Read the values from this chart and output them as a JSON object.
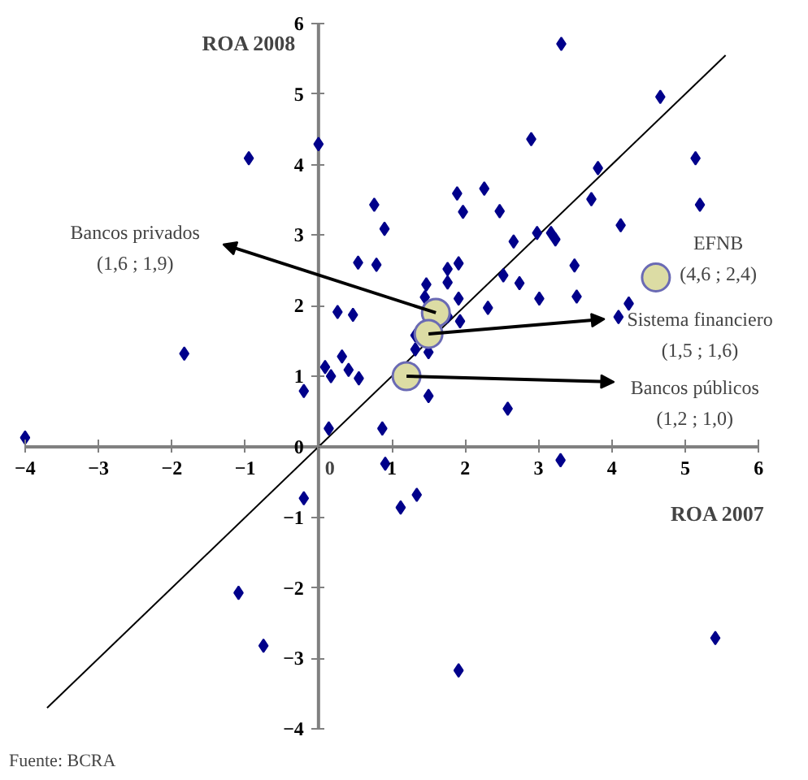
{
  "chart_data": {
    "type": "scatter",
    "xlabel": "ROA 2007",
    "ylabel": "ROA 2008",
    "xlim": [
      -4,
      6
    ],
    "ylim": [
      -4,
      6
    ],
    "xticks": [
      -4,
      -3,
      -2,
      -1,
      0,
      1,
      2,
      3,
      4,
      5,
      6
    ],
    "yticks": [
      -4,
      -3,
      -2,
      -1,
      0,
      1,
      2,
      3,
      4,
      5,
      6
    ],
    "grid": false,
    "series": [
      {
        "type": "line",
        "color": "#000000",
        "marker": "none",
        "line_style": "solid",
        "x": [
          -3.7,
          5.55
        ],
        "values": [
          -3.7,
          5.55
        ]
      },
      {
        "color": "#00008b",
        "marker": "diamond",
        "x": [
          -4.0,
          -1.83,
          -0.95,
          0.0,
          -0.2,
          -0.2,
          -1.09,
          -0.75,
          0.76,
          0.9,
          0.54,
          0.79,
          0.26,
          0.47,
          1.47,
          1.45,
          1.76,
          1.76,
          1.91,
          1.91,
          1.89,
          1.97,
          2.26,
          2.47,
          2.66,
          2.52,
          2.74,
          2.9,
          2.98,
          3.01,
          2.31,
          1.93,
          3.31,
          4.66,
          5.14,
          3.81,
          3.72,
          5.2,
          4.12,
          3.17,
          3.23,
          3.49,
          3.52,
          4.23,
          4.09,
          2.58,
          3.3,
          1.76,
          1.32,
          1.32,
          1.5,
          0.09,
          0.17,
          0.32,
          0.41,
          0.55,
          1.5,
          0.14,
          0.87,
          0.91,
          1.12,
          1.34,
          1.91,
          5.41
        ],
        "values": [
          0.13,
          1.32,
          4.09,
          4.29,
          0.79,
          -0.73,
          -2.07,
          -2.82,
          3.43,
          3.09,
          2.61,
          2.58,
          1.91,
          1.87,
          2.3,
          2.12,
          2.52,
          2.33,
          2.6,
          2.1,
          3.59,
          3.33,
          3.66,
          3.34,
          2.91,
          2.43,
          2.32,
          4.36,
          3.03,
          2.1,
          1.97,
          1.78,
          5.71,
          4.96,
          4.09,
          3.95,
          3.51,
          3.43,
          3.14,
          3.03,
          2.94,
          2.57,
          2.13,
          2.03,
          1.84,
          0.54,
          -0.19,
          1.85,
          1.58,
          1.38,
          1.34,
          1.13,
          1.0,
          1.28,
          1.09,
          0.97,
          0.72,
          0.26,
          0.26,
          -0.24,
          -0.86,
          -0.68,
          -3.17,
          -2.71
        ]
      },
      {
        "color": "#dcdca4",
        "marker": "circle",
        "x": [
          1.6,
          1.5,
          1.2,
          4.6
        ],
        "values": [
          1.9,
          1.6,
          1.0,
          2.4
        ]
      }
    ],
    "annotations": [
      {
        "text": "Bancos privados\n(1,6 ; 1,9)",
        "x": 1.6,
        "y": 1.9
      },
      {
        "text": "Sistema financiero\n(1,5 ; 1,6)",
        "x": 1.5,
        "y": 1.6
      },
      {
        "text": "Bancos públicos\n(1,2 ; 1,0)",
        "x": 1.2,
        "y": 1.0
      },
      {
        "text": "EFNB\n(4,6 ; 2,4)",
        "x": 4.6,
        "y": 2.4
      },
      "Fuente: BCRA"
    ]
  }
}
